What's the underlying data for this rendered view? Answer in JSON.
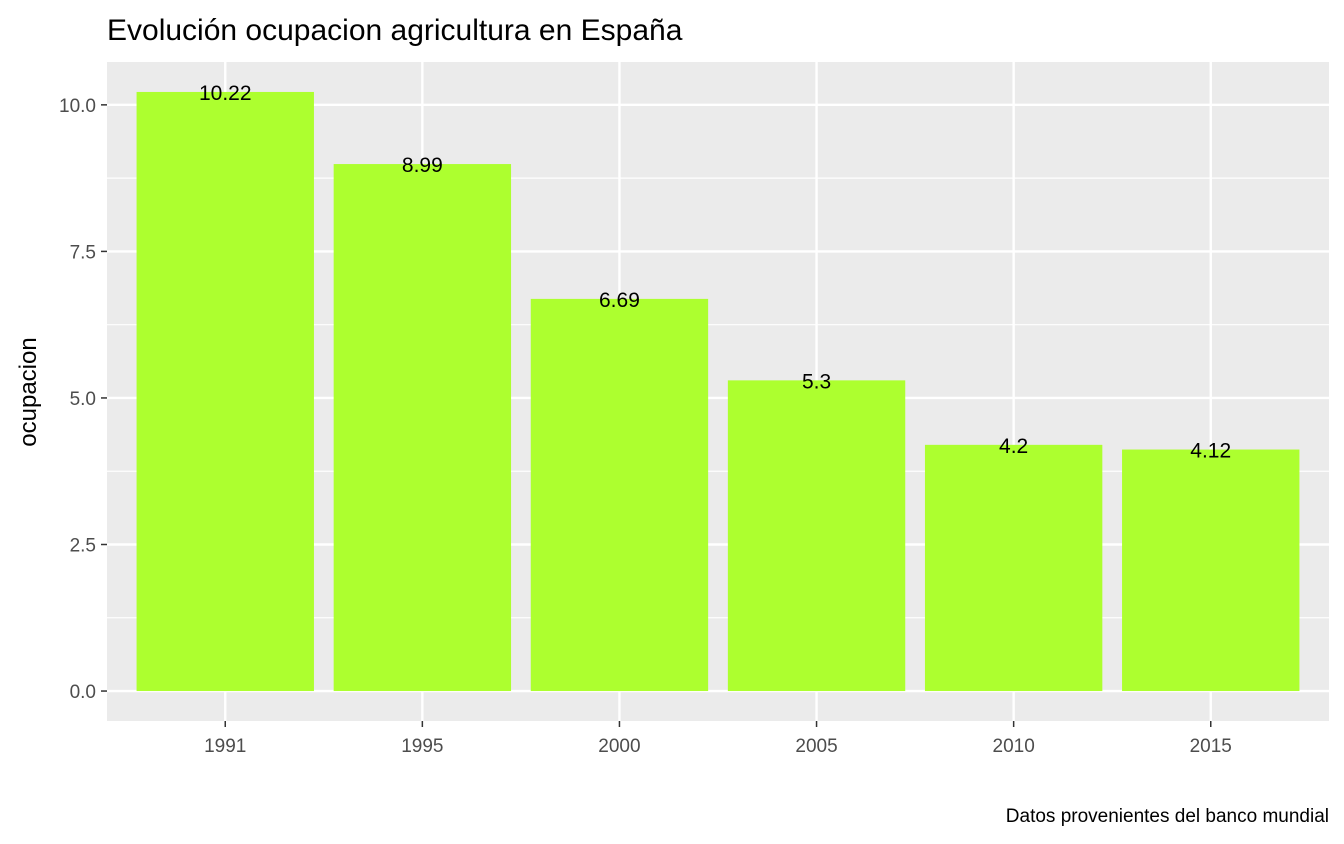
{
  "chart_data": {
    "type": "bar",
    "title": "Evolución ocupacion agricultura en España",
    "caption": "Datos provenientes del banco mundial",
    "xlabel": "",
    "ylabel": "ocupacion",
    "categories": [
      "1991",
      "1995",
      "2000",
      "2005",
      "2010",
      "2015"
    ],
    "values": [
      10.22,
      8.99,
      6.69,
      5.3,
      4.2,
      4.12
    ],
    "value_labels": [
      "10.22",
      "8.99",
      "6.69",
      "5.3",
      "4.2",
      "4.12"
    ],
    "y_ticks": [
      0,
      2.5,
      5,
      7.5,
      10
    ],
    "y_tick_labels": [
      "0.0",
      "2.5",
      "5.0",
      "7.5",
      "10.0"
    ],
    "ylim": [
      -0.511,
      10.731
    ],
    "grid": true,
    "legend": "none",
    "colors": {
      "bar": "#adff2f",
      "panel_background": "#ebebeb",
      "grid_line": "#ffffff",
      "tick_label": "#4d4d4d"
    }
  }
}
